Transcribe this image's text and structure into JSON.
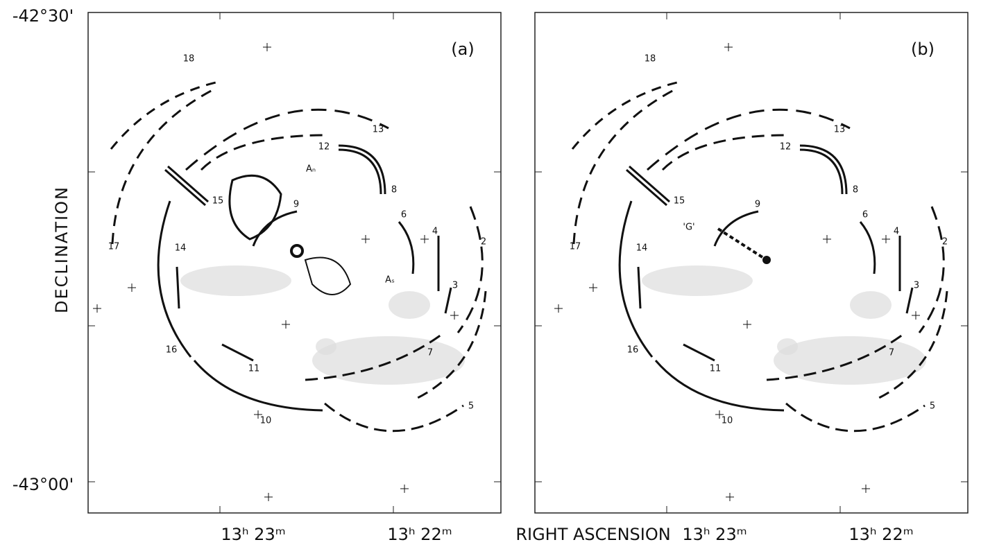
{
  "axes": {
    "dec_top": "-42°30'",
    "dec_bottom": "-43°00'",
    "dec_title": "DECLINATION",
    "ra_title": "RIGHT ASCENSION"
  },
  "panels": [
    {
      "label": "(a)",
      "ra_labels": [
        "13ʰ 23ᵐ",
        "13ʰ 22ᵐ"
      ],
      "arc_labels": [
        "18",
        "13",
        "12",
        "8",
        "15",
        "9",
        "6",
        "4",
        "2",
        "17",
        "14",
        "3",
        "16",
        "7",
        "11",
        "10",
        "5"
      ],
      "feature_labels": [
        "Aₙ",
        "Aₛ"
      ]
    },
    {
      "label": "(b)",
      "ra_labels": [
        "13ʰ 23ᵐ",
        "13ʰ 22ᵐ"
      ],
      "arc_labels": [
        "18",
        "13",
        "12",
        "8",
        "15",
        "9",
        "6",
        "4",
        "2",
        "17",
        "14",
        "3",
        "16",
        "7",
        "11",
        "10",
        "5"
      ],
      "feature_labels": [
        "'G'"
      ]
    }
  ]
}
